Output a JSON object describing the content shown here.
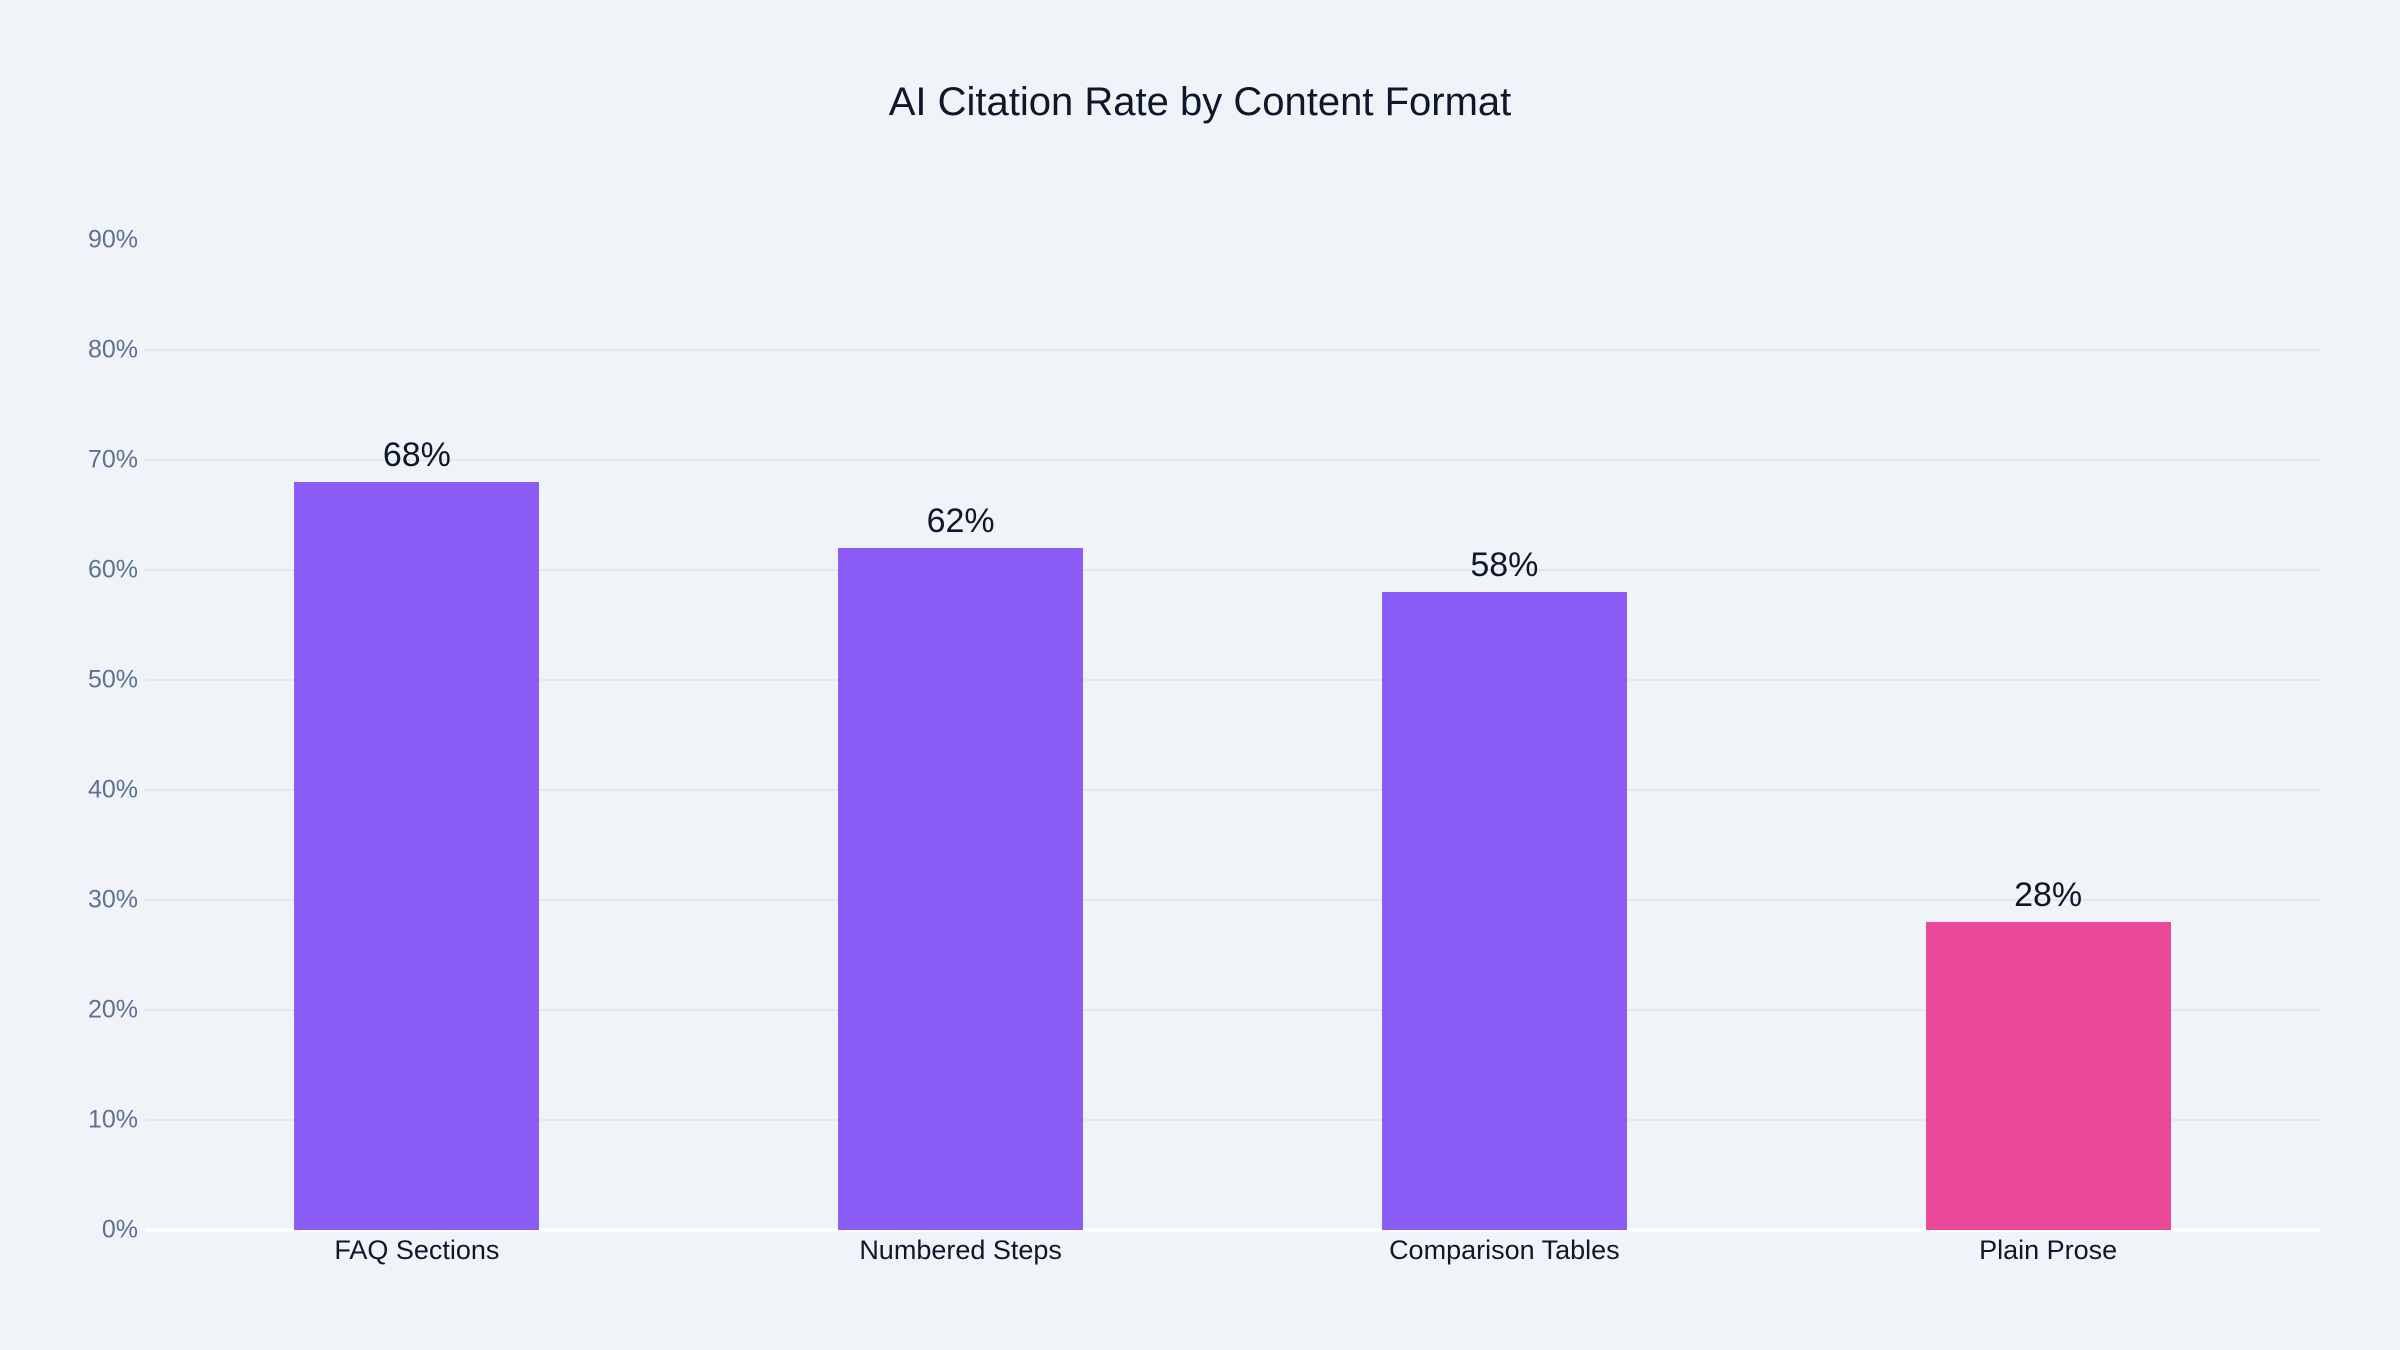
{
  "chart_data": {
    "type": "bar",
    "title": "AI Citation Rate by Content Format",
    "xlabel": "",
    "ylabel": "",
    "categories": [
      "FAQ Sections",
      "Numbered Steps",
      "Comparison Tables",
      "Plain Prose"
    ],
    "values": [
      68,
      62,
      58,
      28
    ],
    "value_labels": [
      "68%",
      "62%",
      "58%",
      "28%"
    ],
    "colors": [
      "#8b5cf6",
      "#8b5cf6",
      "#8b5cf6",
      "#ec4899"
    ],
    "ylim": [
      0,
      90
    ],
    "yticks": [
      0,
      10,
      20,
      30,
      40,
      50,
      60,
      70,
      80,
      90
    ],
    "ytick_labels": [
      "0%",
      "10%",
      "20%",
      "30%",
      "40%",
      "50%",
      "60%",
      "70%",
      "80%",
      "90%"
    ],
    "grid": true,
    "legend": false
  },
  "colors": {
    "background": "#f0f4f9",
    "gridline": "#e2e8f0",
    "highlight": "#8b5cf6",
    "contrast": "#ec4899"
  }
}
